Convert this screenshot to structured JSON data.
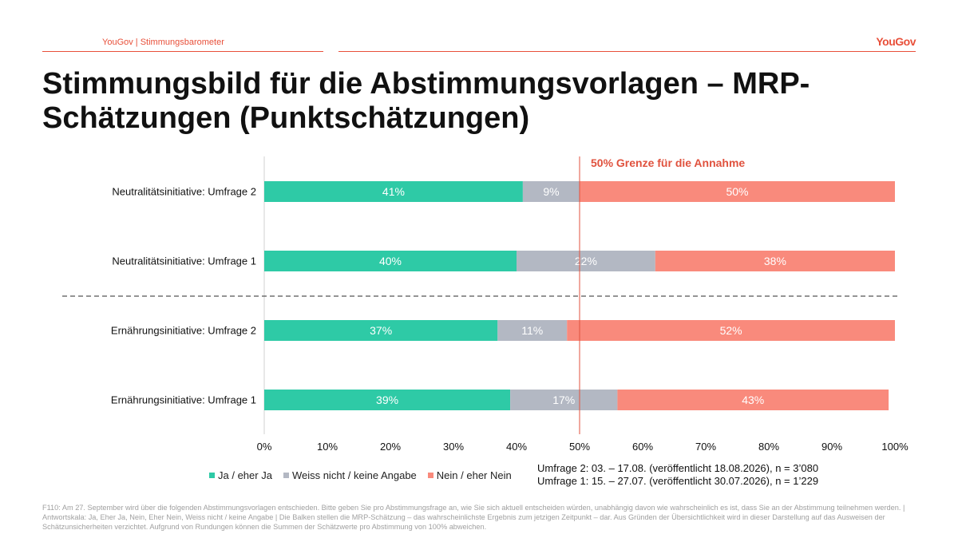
{
  "header": {
    "source_label": "YouGov | Stimmungsbarometer",
    "logo": "YouGov"
  },
  "title": "Stimmungsbild für die Abstimmungsvorlagen – MRP-Schätzungen (Punktschätzungen)",
  "threshold_label": "50% Grenze für die Annahme",
  "chart_data": {
    "type": "bar",
    "orientation": "horizontal",
    "stacked": true,
    "categories": [
      "Neutralitätsinitiative: Umfrage 2",
      "Neutralitätsinitiative: Umfrage 1",
      "Ernährungsinitiative: Umfrage 2",
      "Ernährungsinitiative: Umfrage 1"
    ],
    "series": [
      {
        "name": "Ja / eher Ja",
        "color": "#2ecaa6",
        "values": [
          41,
          40,
          37,
          39
        ]
      },
      {
        "name": "Weiss nicht / keine Angabe",
        "color": "#b3b8c3",
        "values": [
          9,
          22,
          11,
          17
        ]
      },
      {
        "name": "Nein / eher Nein",
        "color": "#f98a7c",
        "values": [
          50,
          38,
          52,
          43
        ]
      }
    ],
    "xlim": [
      0,
      100
    ],
    "xticks": [
      "0%",
      "10%",
      "20%",
      "30%",
      "40%",
      "50%",
      "60%",
      "70%",
      "80%",
      "90%",
      "100%"
    ],
    "threshold": 50,
    "group_separator_after": 1,
    "legend_position": "bottom"
  },
  "survey_info": [
    "Umfrage 2: 03. – 17.08. (veröffentlicht 18.08.2026), n = 3’080",
    "Umfrage 1: 15. – 27.07. (veröffentlicht 30.07.2026), n = 1’229"
  ],
  "footnote": "F110: Am 27. September wird über die folgenden Abstimmungsvorlagen entschieden. Bitte geben Sie pro Abstimmungsfrage an, wie Sie sich aktuell entscheiden würden, unabhängig davon wie wahrscheinlich es ist, dass Sie an der Abstimmung teilnehmen werden. | Antwortskala: Ja, Eher Ja, Nein, Eher Nein, Weiss nicht / keine Angabe | Die Balken stellen die MRP-Schätzung – das wahrscheinlichste Ergebnis zum jetzigen Zeitpunkt – dar. Aus Gründen der Übersichtlichkeit wird in dieser Darstellung auf das Ausweisen der Schätzunsicherheiten verzichtet. Aufgrund von Rundungen können die Summen der Schätzwerte pro Abstimmung von 100% abweichen."
}
